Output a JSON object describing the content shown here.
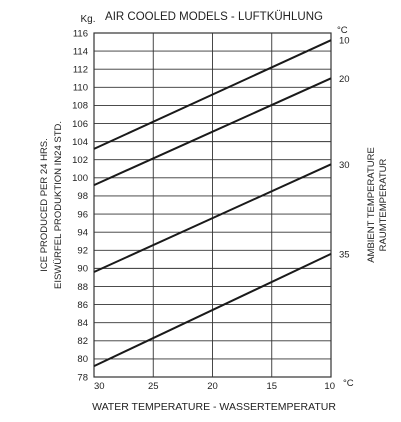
{
  "chart_data": {
    "type": "line",
    "title": "AIR COOLED MODELS - LUFTKÜHLUNG",
    "xlabel": "WATER TEMPERATURE - WASSERTEMPERATUR",
    "ylabel_line1": "ICE PRODUCED PER 24 HRS.",
    "ylabel_line2": "EISWÜRFEL PRODUKTION IN24 STD.",
    "y_unit": "Kg.",
    "right_unit": "°C",
    "x_unit": "°C",
    "right_label_line1": "AMBIENT TEMPERATURE",
    "right_label_line2": "RAUMTEMPERATUR",
    "xlim": [
      30,
      10
    ],
    "ylim": [
      78,
      116
    ],
    "x_ticks": [
      30,
      25,
      20,
      15,
      10
    ],
    "y_ticks": [
      78,
      80,
      82,
      84,
      86,
      88,
      90,
      92,
      94,
      96,
      98,
      100,
      102,
      104,
      106,
      108,
      110,
      112,
      114,
      116
    ],
    "series": [
      {
        "name": "10",
        "x": [
          30,
          10
        ],
        "y": [
          103.2,
          115.2
        ]
      },
      {
        "name": "20",
        "x": [
          30,
          10
        ],
        "y": [
          99.2,
          111.0
        ]
      },
      {
        "name": "30",
        "x": [
          30,
          10
        ],
        "y": [
          89.6,
          101.5
        ]
      },
      {
        "name": "35",
        "x": [
          30,
          10
        ],
        "y": [
          79.2,
          91.6
        ]
      }
    ],
    "series_color": "#1a1a1a",
    "grid_color": "#333333"
  }
}
